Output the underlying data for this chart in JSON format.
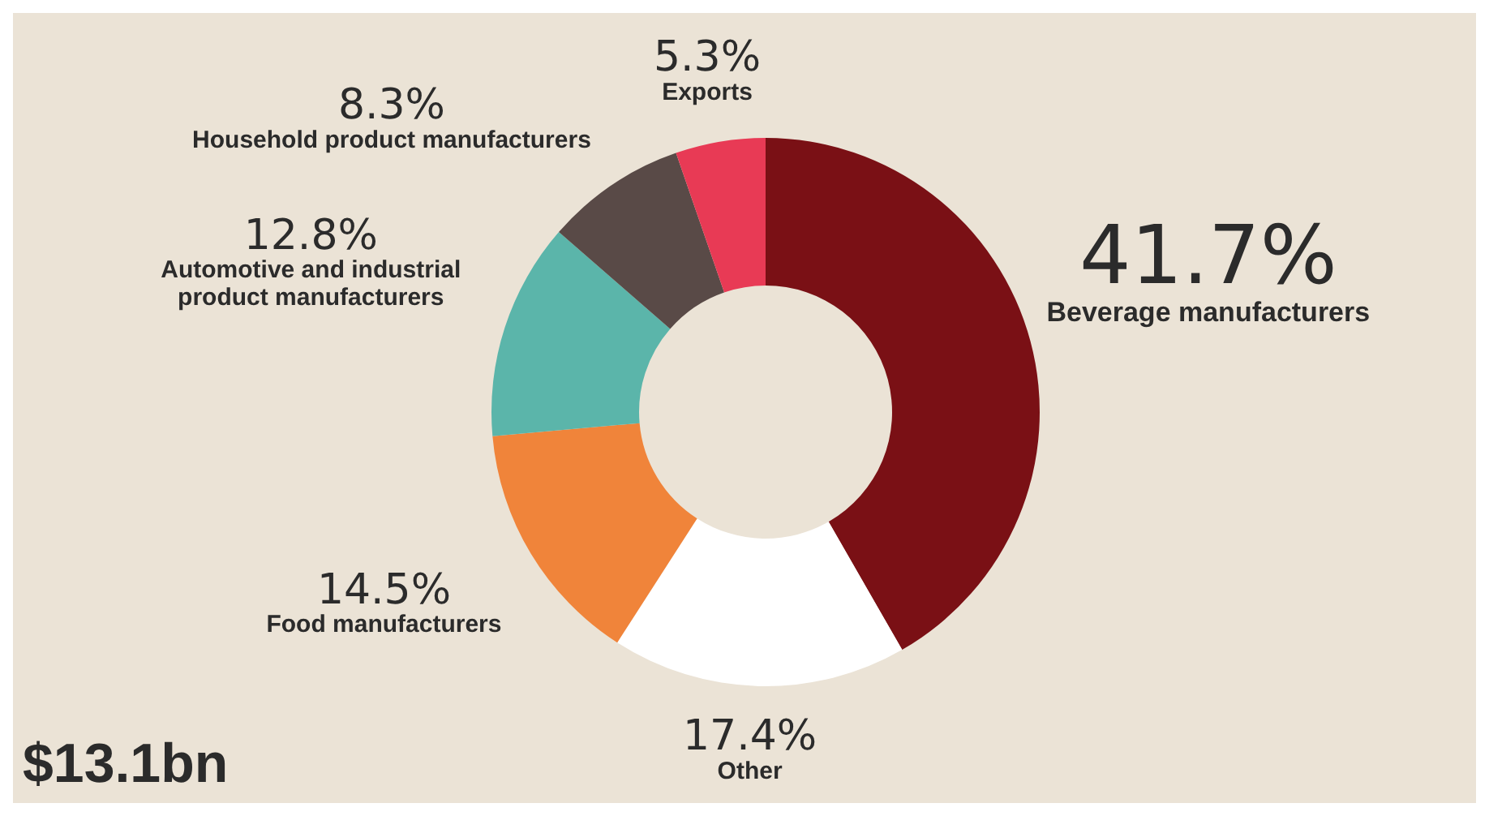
{
  "chart_data": {
    "type": "donut",
    "categories": [
      "Beverage manufacturers",
      "Other",
      "Food manufacturers",
      "Automotive and industrial product manufacturers",
      "Household product manufacturers",
      "Exports"
    ],
    "values": [
      41.7,
      17.4,
      14.5,
      12.8,
      8.3,
      5.3
    ],
    "colors": [
      "#7a1015",
      "#ffffff",
      "#f0843a",
      "#5bb5aa",
      "#594a47",
      "#e83a55"
    ],
    "value_labels": [
      "41.7%",
      "17.4%",
      "14.5%",
      "12.8%",
      "8.3%",
      "5.3%"
    ],
    "annotations": [
      "$13.1bn"
    ]
  }
}
